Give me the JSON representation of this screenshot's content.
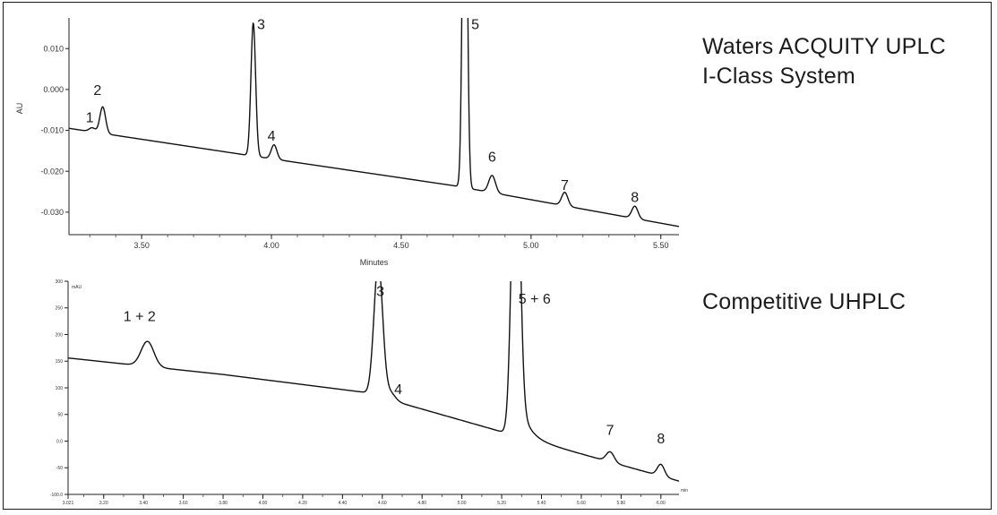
{
  "captions": {
    "top_line1": "Waters ACQUITY UPLC",
    "top_line2": "I-Class System",
    "bottom": "Competitive UHPLC"
  },
  "chart_data": [
    {
      "id": "top",
      "type": "line",
      "title": "",
      "xlabel": "Minutes",
      "ylabel": "AU",
      "xlim": [
        3.22,
        5.57
      ],
      "ylim": [
        -0.0355,
        0.0175
      ],
      "x_ticks": [
        {
          "v": 3.5,
          "label": "3.50"
        },
        {
          "v": 4.0,
          "label": "4.00"
        },
        {
          "v": 4.5,
          "label": "4.50"
        },
        {
          "v": 5.0,
          "label": "5.00"
        },
        {
          "v": 5.5,
          "label": "5.50"
        }
      ],
      "y_ticks": [
        {
          "v": 0.01,
          "label": "0.010"
        },
        {
          "v": 0.0,
          "label": "0.000"
        },
        {
          "v": -0.01,
          "label": "-0.010"
        },
        {
          "v": -0.02,
          "label": "-0.020"
        },
        {
          "v": -0.03,
          "label": "-0.030"
        }
      ],
      "x_minor_step": 0.1,
      "baseline": {
        "x": [
          3.22,
          3.9,
          4.7,
          5.57
        ],
        "y": [
          -0.0095,
          -0.016,
          -0.0235,
          -0.0335
        ]
      },
      "peaks": [
        {
          "label": "1",
          "x": 3.31,
          "height": 0.001,
          "width": 0.012
        },
        {
          "label": "2",
          "x": 3.35,
          "height": 0.0065,
          "width": 0.011
        },
        {
          "label": "3",
          "x": 3.93,
          "height": 0.0325,
          "width": 0.009
        },
        {
          "label": "4",
          "x": 4.01,
          "height": 0.0035,
          "width": 0.011
        },
        {
          "label": "5",
          "x": 4.745,
          "height": 0.11,
          "width": 0.0085
        },
        {
          "label": "6",
          "x": 4.85,
          "height": 0.0042,
          "width": 0.013
        },
        {
          "label": "7",
          "x": 5.13,
          "height": 0.0033,
          "width": 0.012
        },
        {
          "label": "8",
          "x": 5.4,
          "height": 0.003,
          "width": 0.012
        }
      ],
      "peak_labels": [
        {
          "text": "1",
          "x": 3.3,
          "y": -0.008
        },
        {
          "text": "2",
          "x": 3.33,
          "y": -0.0013
        },
        {
          "text": "3",
          "x": 3.96,
          "y": 0.0148
        },
        {
          "text": "4",
          "x": 4.0,
          "y": -0.0125
        },
        {
          "text": "5",
          "x": 4.785,
          "y": 0.0148
        },
        {
          "text": "6",
          "x": 4.85,
          "y": -0.0177
        },
        {
          "text": "7",
          "x": 5.13,
          "y": -0.0245
        },
        {
          "text": "8",
          "x": 5.4,
          "y": -0.0275
        }
      ],
      "line_color": "#111111"
    },
    {
      "id": "bottom",
      "type": "line",
      "title": "",
      "xlabel": "min",
      "ylabel": "mAU",
      "xlim": [
        3.021,
        6.091
      ],
      "ylim": [
        -100.0,
        300.0
      ],
      "x_ticks": [
        {
          "v": 3.021,
          "label": "3.021"
        },
        {
          "v": 3.2,
          "label": "3.20"
        },
        {
          "v": 3.4,
          "label": "3.40"
        },
        {
          "v": 3.6,
          "label": "3.60"
        },
        {
          "v": 3.8,
          "label": "3.80"
        },
        {
          "v": 4.0,
          "label": "4.00"
        },
        {
          "v": 4.2,
          "label": "4.20"
        },
        {
          "v": 4.4,
          "label": "4.40"
        },
        {
          "v": 4.6,
          "label": "4.60"
        },
        {
          "v": 4.8,
          "label": "4.80"
        },
        {
          "v": 5.0,
          "label": "5.00"
        },
        {
          "v": 5.2,
          "label": "5.20"
        },
        {
          "v": 5.4,
          "label": "5.40"
        },
        {
          "v": 5.6,
          "label": "5.60"
        },
        {
          "v": 5.8,
          "label": "5.80"
        },
        {
          "v": 6.0,
          "label": "6.00"
        }
      ],
      "y_ticks": [
        {
          "v": 300,
          "label": "300"
        },
        {
          "v": 250,
          "label": "250"
        },
        {
          "v": 200,
          "label": "200"
        },
        {
          "v": 150,
          "label": "150"
        },
        {
          "v": 100,
          "label": "100"
        },
        {
          "v": 50,
          "label": "50"
        },
        {
          "v": 0,
          "label": "0.0"
        },
        {
          "v": -50,
          "label": "-50"
        },
        {
          "v": -100,
          "label": "-100.0"
        }
      ],
      "x_minor_step": 0.1,
      "baseline": {
        "x": [
          3.021,
          3.8,
          4.5,
          5.205,
          6.091
        ],
        "y": [
          156,
          125,
          92,
          17,
          -75
        ]
      },
      "peaks": [
        {
          "label": "1 + 2",
          "x": 3.42,
          "height": 47,
          "width": 0.032
        },
        {
          "label": "3",
          "x": 4.58,
          "height": 250,
          "width": 0.022
        },
        {
          "label": "4",
          "x": 4.64,
          "height": 14,
          "width": 0.025
        },
        {
          "label": "5 + 6",
          "x": 5.27,
          "height": 620,
          "width": 0.02,
          "tail": {
            "amp": 110,
            "decay": 0.045
          }
        },
        {
          "label": "7",
          "x": 5.745,
          "height": 19,
          "width": 0.02
        },
        {
          "label": "8",
          "x": 6.0,
          "height": 22,
          "width": 0.018
        }
      ],
      "peak_labels": [
        {
          "text": "1 + 2",
          "x": 3.38,
          "y": 225
        },
        {
          "text": "3",
          "x": 4.59,
          "y": 272
        },
        {
          "text": "4",
          "x": 4.68,
          "y": 88
        },
        {
          "text": "5 + 6",
          "x": 5.365,
          "y": 258
        },
        {
          "text": "7",
          "x": 5.745,
          "y": 12
        },
        {
          "text": "8",
          "x": 6.0,
          "y": -4
        }
      ],
      "line_color": "#111111"
    }
  ]
}
